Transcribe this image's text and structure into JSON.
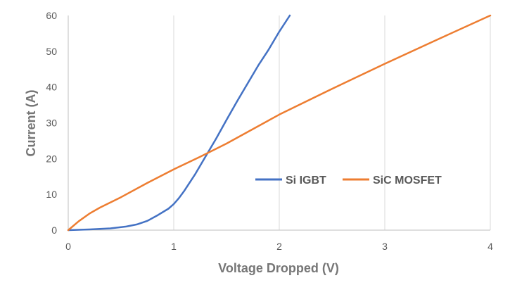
{
  "chart_data": {
    "type": "line",
    "title": "",
    "xlabel": "Voltage Dropped (V)",
    "ylabel": "Current (A)",
    "xlim": [
      0,
      4
    ],
    "ylim": [
      0,
      60
    ],
    "x_ticks": [
      "0",
      "1",
      "2",
      "3",
      "4"
    ],
    "y_ticks": [
      "0",
      "10",
      "20",
      "30",
      "40",
      "50",
      "60"
    ],
    "grid": "vertical",
    "legend_position": "center-right",
    "series": [
      {
        "name": "Si IGBT",
        "color": "#4472c4",
        "x": [
          0,
          0.2,
          0.4,
          0.55,
          0.65,
          0.75,
          0.85,
          0.95,
          1.0,
          1.05,
          1.1,
          1.2,
          1.3,
          1.4,
          1.5,
          1.6,
          1.7,
          1.8,
          1.9,
          2.0,
          2.1
        ],
        "y": [
          0,
          0.2,
          0.5,
          1.0,
          1.6,
          2.6,
          4.2,
          6.0,
          7.3,
          9.0,
          11.0,
          15.5,
          20.5,
          25.5,
          30.8,
          36.0,
          41.0,
          46.0,
          50.5,
          55.5,
          60
        ]
      },
      {
        "name": "SiC MOSFET",
        "color": "#ed7d31",
        "x": [
          0,
          0.1,
          0.2,
          0.3,
          0.5,
          0.75,
          1.0,
          1.25,
          1.5,
          2.0,
          2.5,
          3.0,
          3.5,
          4.0
        ],
        "y": [
          0,
          2.5,
          4.6,
          6.3,
          9.2,
          13.2,
          17.0,
          20.5,
          24.2,
          32.3,
          39.5,
          46.5,
          53.3,
          60
        ]
      }
    ]
  }
}
